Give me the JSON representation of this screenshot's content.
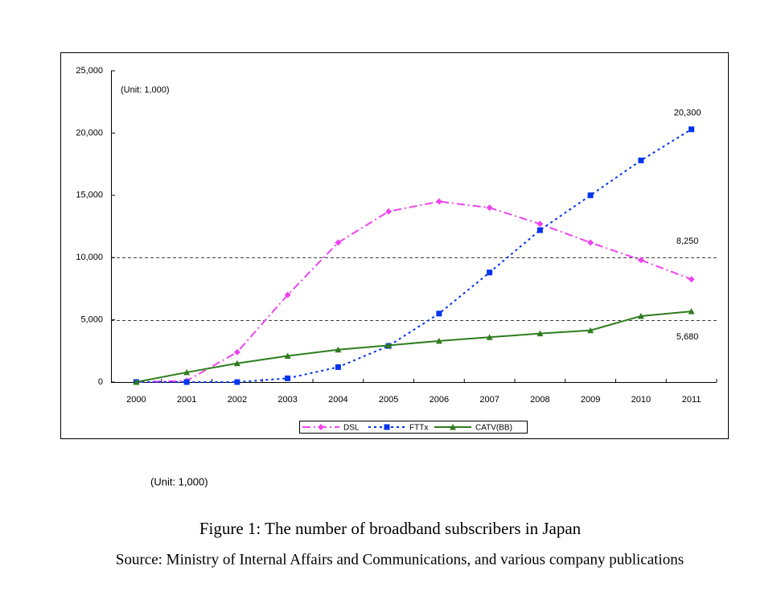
{
  "chart_data": {
    "type": "line",
    "annotation": "(Unit: 1,000)",
    "categories": [
      "2000",
      "2001",
      "2002",
      "2003",
      "2004",
      "2005",
      "2006",
      "2007",
      "2008",
      "2009",
      "2010",
      "2011"
    ],
    "series": [
      {
        "name": "DSL",
        "color": "#ee44ee",
        "marker": "diamond",
        "line_style": "dashdot",
        "values": [
          0,
          100,
          2400,
          7000,
          11200,
          13700,
          14500,
          14000,
          12700,
          11200,
          9800,
          8250
        ],
        "value_labels": [
          null,
          null,
          null,
          null,
          null,
          null,
          null,
          null,
          null,
          null,
          null,
          "8,250"
        ]
      },
      {
        "name": "FTTx",
        "color": "#0033ee",
        "marker": "square",
        "line_style": "dotted",
        "values": [
          0,
          0,
          0,
          300,
          1200,
          2900,
          5500,
          8800,
          12200,
          15000,
          17800,
          20300
        ],
        "value_labels": [
          null,
          null,
          null,
          null,
          null,
          null,
          null,
          null,
          null,
          null,
          null,
          "20,300"
        ]
      },
      {
        "name": "CATV(BB)",
        "color": "#2e7d1e",
        "marker": "triangle",
        "line_style": "solid",
        "values": [
          0,
          780,
          1500,
          2100,
          2600,
          2950,
          3300,
          3600,
          3900,
          4150,
          5300,
          5680
        ],
        "value_labels": [
          null,
          null,
          null,
          null,
          null,
          null,
          null,
          null,
          null,
          null,
          null,
          "5,680"
        ]
      }
    ],
    "ylim": [
      0,
      25000
    ],
    "yticks": [
      0,
      {
        "value": 5000,
        "label": "5,000"
      },
      {
        "value": 10000,
        "label": "10,000"
      },
      {
        "value": 15000,
        "label": "15,000"
      },
      {
        "value": 20000,
        "label": "20,000"
      },
      {
        "value": 25000,
        "label": "25,000"
      }
    ],
    "reference_lines": [
      5000,
      10000
    ],
    "legend": "bottom"
  },
  "note": "(Unit: 1,000)",
  "caption": "Figure 1: The number of broadband subscribers in Japan",
  "source": "Source: Ministry of Internal Affairs and Communications, and various company publications"
}
